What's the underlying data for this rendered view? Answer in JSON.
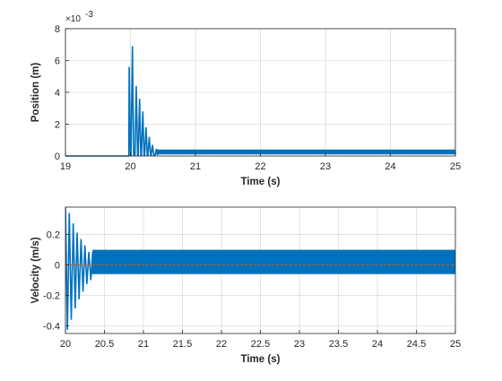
{
  "chart_data": [
    {
      "type": "line",
      "title": "",
      "xlabel": "Time (s)",
      "ylabel": "Position (m)",
      "xlim": [
        19,
        25
      ],
      "ylim": [
        0,
        8
      ],
      "y_exponent_label": "×10",
      "y_exponent": "-3",
      "grid": true,
      "x_ticks": [
        "19",
        "20",
        "21",
        "22",
        "23",
        "24",
        "25"
      ],
      "y_ticks": [
        "0",
        "2",
        "4",
        "6",
        "8"
      ],
      "series_color": "#0072BD",
      "series": [
        {
          "t_range": [
            19,
            25
          ],
          "baseline_before_start": 0,
          "start_time": 19.97,
          "peaks": [
            [
              19.98,
              5.6
            ],
            [
              20.03,
              6.9
            ],
            [
              20.09,
              4.4
            ],
            [
              20.14,
              3.6
            ],
            [
              20.19,
              2.8
            ],
            [
              20.24,
              1.8
            ],
            [
              20.29,
              1.2
            ],
            [
              20.34,
              0.7
            ],
            [
              20.4,
              0.45
            ]
          ],
          "steady_state_band": [
            0.1,
            0.4
          ],
          "steady_state_from": 20.4
        }
      ]
    },
    {
      "type": "line",
      "title": "",
      "xlabel": "Time (s)",
      "ylabel": "Velocity (m/s)",
      "xlim": [
        20,
        25
      ],
      "ylim": [
        -0.45,
        0.38
      ],
      "grid": true,
      "x_ticks": [
        "20",
        "20.5",
        "21",
        "21.5",
        "22",
        "22.5",
        "23",
        "23.5",
        "24",
        "24.5",
        "25"
      ],
      "y_ticks": [
        "-0.4",
        "-0.2",
        "0",
        "0.2"
      ],
      "series_color": "#0072BD",
      "reference_line": {
        "y": 0,
        "color": "#D95319",
        "style": "dashed"
      },
      "series": [
        {
          "t_range": [
            20,
            25
          ],
          "decaying_envelope": [
            [
              20.0,
              0.45
            ],
            [
              20.05,
              0.4
            ],
            [
              20.1,
              0.32
            ],
            [
              20.15,
              0.25
            ],
            [
              20.2,
              0.2
            ],
            [
              20.25,
              0.15
            ],
            [
              20.3,
              0.1
            ]
          ],
          "steady_state_band": [
            -0.06,
            0.1
          ],
          "steady_state_from": 20.35
        }
      ]
    }
  ]
}
